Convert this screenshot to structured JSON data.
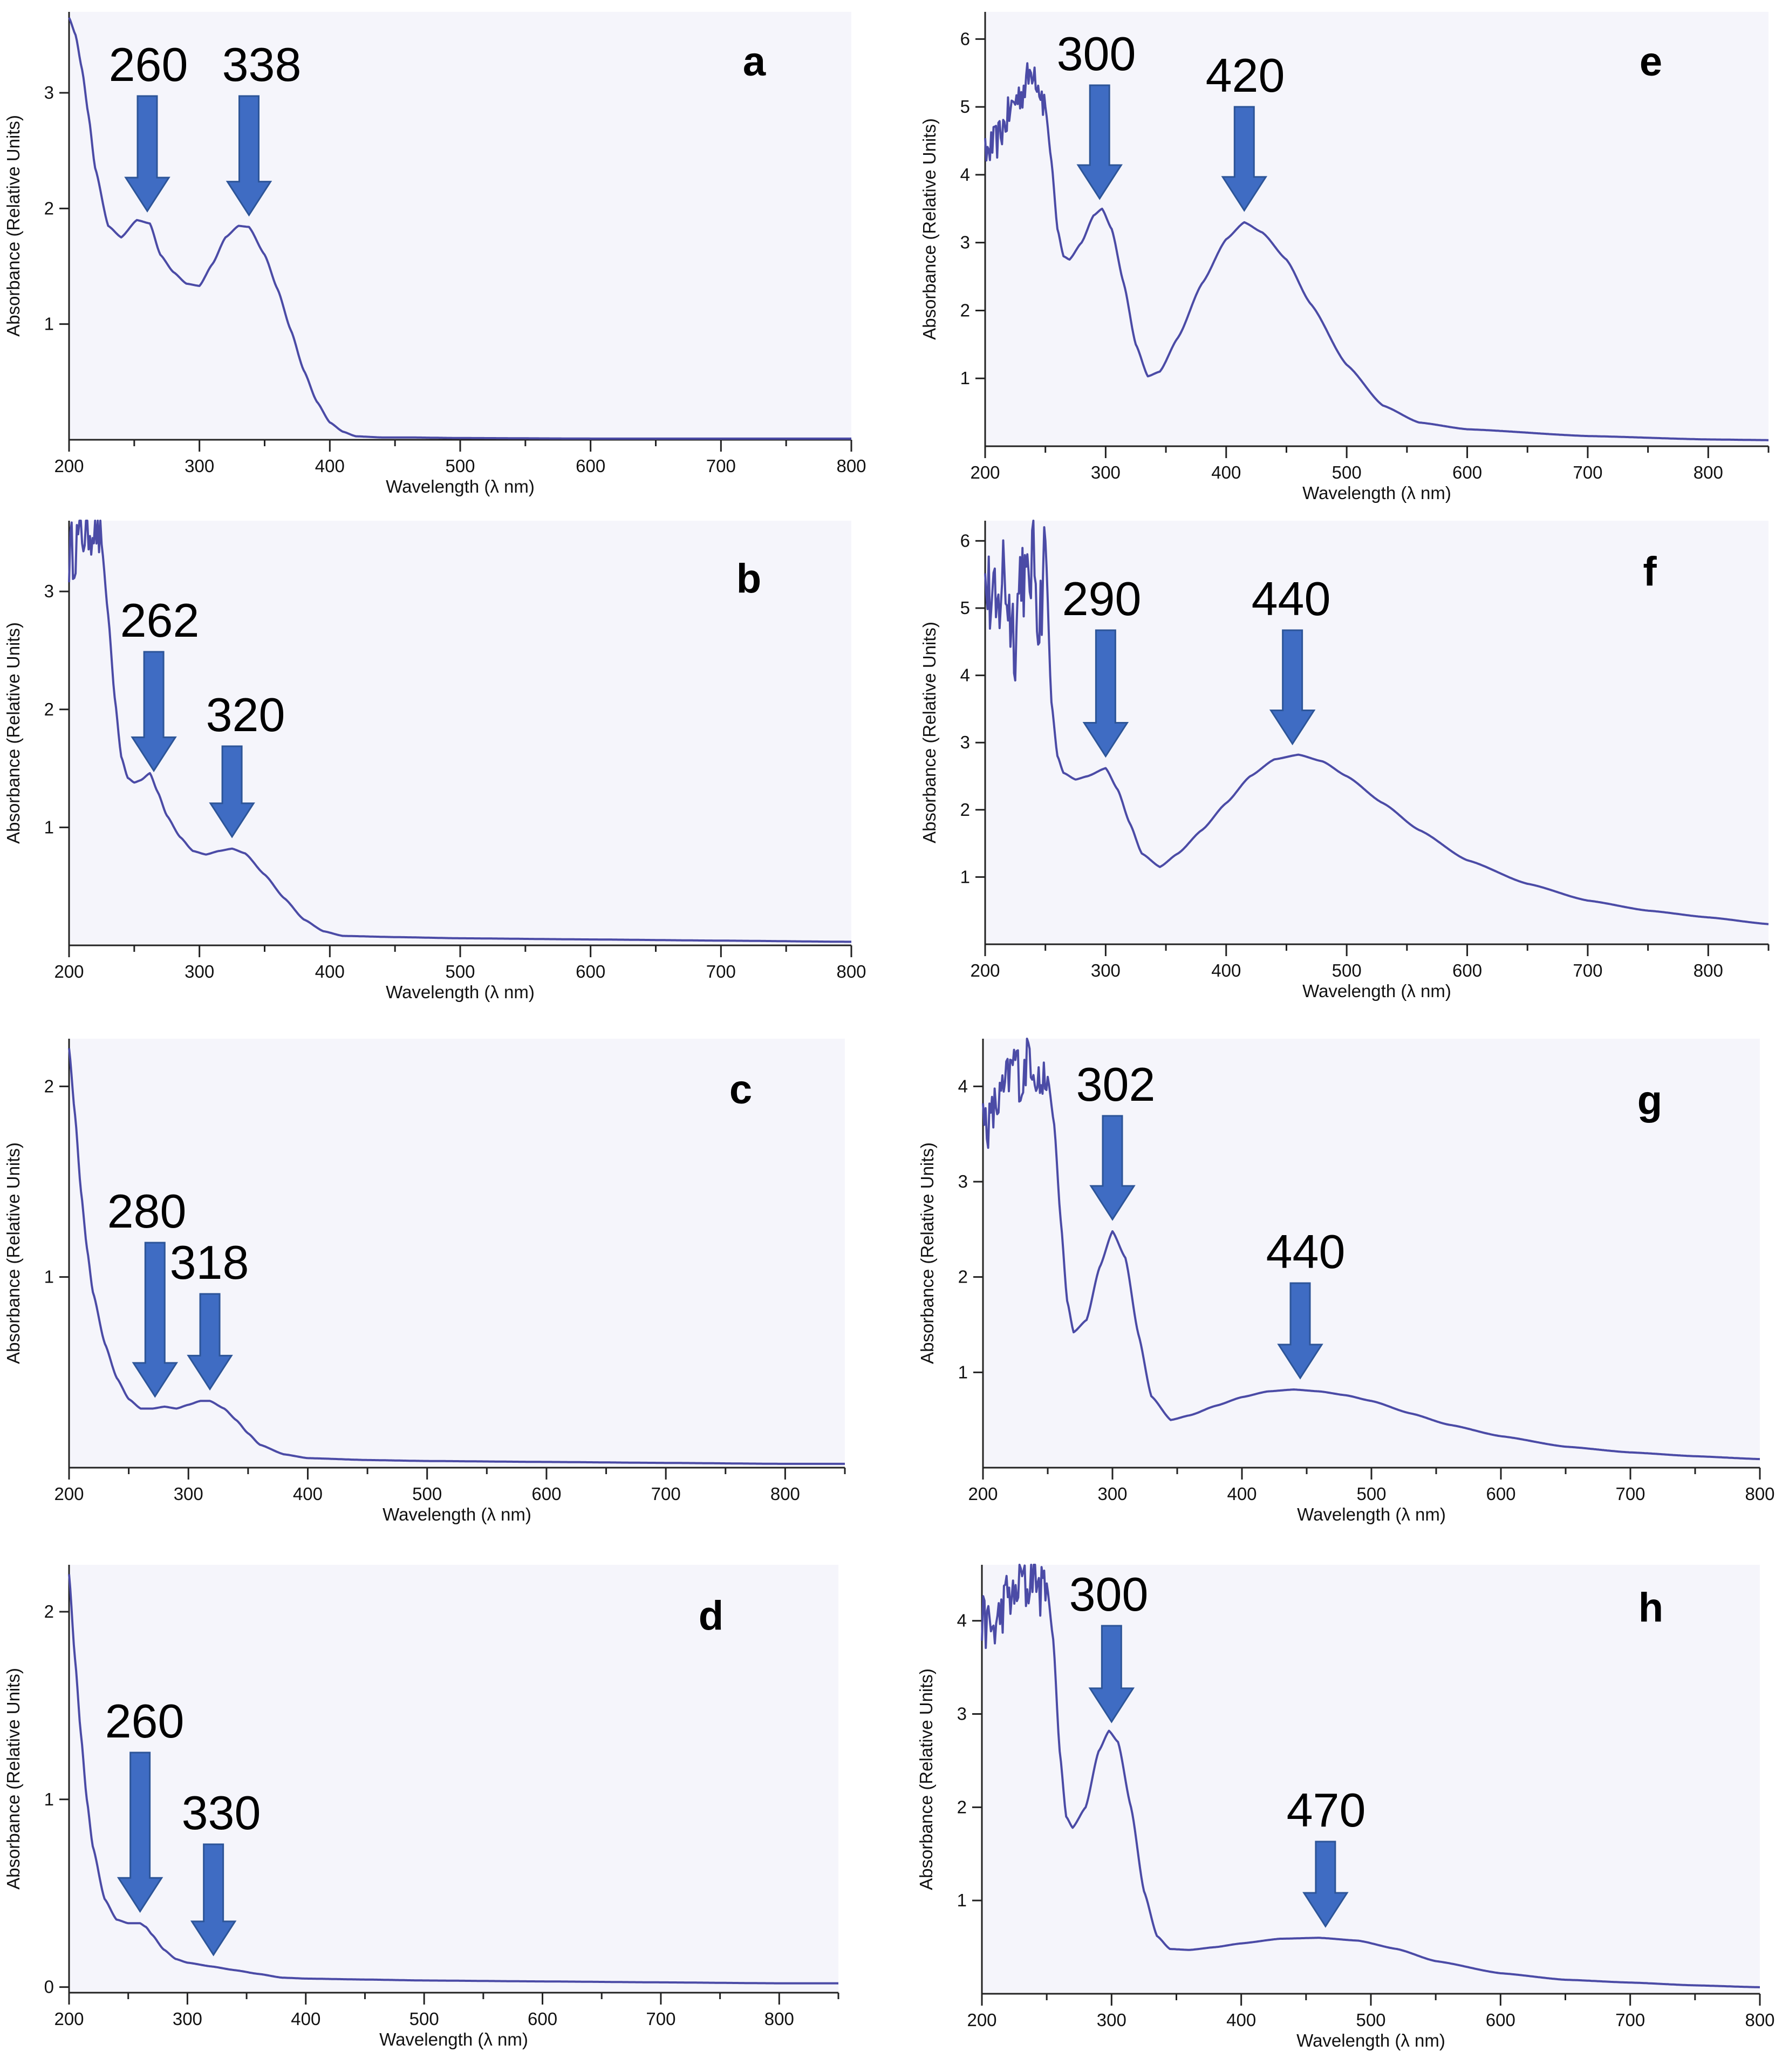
{
  "figure": {
    "colors": {
      "line": "#4b4ba6",
      "arrow_fill": "#3f6cc3",
      "arrow_stroke": "#2d5598",
      "panel_background": "#f5f5fb",
      "axis": "#222222"
    },
    "axis_labels": {
      "x": "Wavelength (λ nm)",
      "y": "Absorbance (Relative Units)"
    }
  },
  "chart_data": [
    {
      "panel": "a",
      "type": "line",
      "xlabel": "Wavelength (λ nm)",
      "ylabel": "Absorbance (Relative Units)",
      "xlim": [
        200,
        800
      ],
      "ylim": [
        0,
        3.7
      ],
      "xticks": [
        200,
        300,
        400,
        500,
        600,
        700,
        800
      ],
      "yticks": [
        1,
        2,
        3
      ],
      "noisy_until": 0,
      "x": [
        200,
        205,
        210,
        215,
        220,
        230,
        240,
        252,
        262,
        270,
        280,
        290,
        300,
        310,
        320,
        330,
        338,
        350,
        360,
        370,
        380,
        390,
        400,
        410,
        420,
        440,
        460,
        500,
        600,
        700,
        800
      ],
      "y": [
        3.65,
        3.5,
        3.2,
        2.8,
        2.35,
        1.85,
        1.75,
        1.9,
        1.87,
        1.6,
        1.45,
        1.35,
        1.33,
        1.52,
        1.75,
        1.85,
        1.84,
        1.6,
        1.3,
        0.95,
        0.6,
        0.33,
        0.15,
        0.07,
        0.03,
        0.02,
        0.02,
        0.015,
        0.01,
        0.01,
        0.01
      ],
      "peaks": [
        {
          "label": "260",
          "wavelength": 260
        },
        {
          "label": "338",
          "wavelength": 338
        }
      ]
    },
    {
      "panel": "b",
      "type": "line",
      "xlabel": "Wavelength (λ nm)",
      "ylabel": "Absorbance (Relative Units)",
      "xlim": [
        200,
        800
      ],
      "ylim": [
        0,
        3.6
      ],
      "xticks": [
        200,
        300,
        400,
        500,
        600,
        700,
        800
      ],
      "yticks": [
        1,
        2,
        3
      ],
      "noisy_until": 225,
      "x": [
        200,
        205,
        210,
        215,
        220,
        225,
        230,
        235,
        240,
        245,
        250,
        255,
        262,
        268,
        275,
        285,
        295,
        305,
        315,
        325,
        335,
        350,
        365,
        380,
        395,
        410,
        450,
        500,
        600,
        700,
        800
      ],
      "y": [
        3.3,
        3.4,
        3.5,
        3.55,
        3.6,
        3.4,
        2.8,
        2.1,
        1.6,
        1.42,
        1.38,
        1.4,
        1.46,
        1.3,
        1.1,
        0.92,
        0.8,
        0.77,
        0.8,
        0.82,
        0.78,
        0.6,
        0.4,
        0.22,
        0.12,
        0.08,
        0.07,
        0.06,
        0.05,
        0.04,
        0.03
      ],
      "peaks": [
        {
          "label": "262",
          "wavelength": 265
        },
        {
          "label": "320",
          "wavelength": 325
        }
      ]
    },
    {
      "panel": "c",
      "type": "line",
      "xlabel": "Wavelength (λ nm)",
      "ylabel": "Absorbance (Relative Units)",
      "xlim": [
        200,
        850
      ],
      "ylim": [
        0,
        2.25
      ],
      "xticks": [
        200,
        300,
        400,
        500,
        600,
        700,
        800
      ],
      "yticks": [
        1,
        2
      ],
      "noisy_until": 0,
      "x": [
        200,
        205,
        210,
        215,
        220,
        230,
        240,
        250,
        260,
        270,
        280,
        290,
        300,
        310,
        318,
        330,
        340,
        350,
        360,
        380,
        400,
        450,
        500,
        600,
        700,
        800,
        850
      ],
      "y": [
        2.2,
        1.85,
        1.45,
        1.15,
        0.92,
        0.65,
        0.47,
        0.36,
        0.31,
        0.31,
        0.32,
        0.31,
        0.33,
        0.35,
        0.35,
        0.31,
        0.25,
        0.18,
        0.12,
        0.07,
        0.05,
        0.04,
        0.035,
        0.03,
        0.025,
        0.02,
        0.02
      ],
      "peaks": [
        {
          "label": "280",
          "wavelength": 272
        },
        {
          "label": "318",
          "wavelength": 318
        }
      ]
    },
    {
      "panel": "d",
      "type": "line",
      "xlabel": "Wavelength (λ nm)",
      "ylabel": "Absorbance (Relative Units)",
      "xlim": [
        200,
        850
      ],
      "ylim": [
        -0.03,
        2.25
      ],
      "xticks": [
        200,
        300,
        400,
        500,
        600,
        700,
        800
      ],
      "yticks": [
        0,
        1,
        2
      ],
      "noisy_until": 0,
      "x": [
        200,
        205,
        210,
        215,
        220,
        230,
        240,
        250,
        260,
        265,
        270,
        280,
        290,
        300,
        320,
        340,
        360,
        380,
        400,
        450,
        500,
        600,
        700,
        800,
        850
      ],
      "y": [
        2.2,
        1.75,
        1.35,
        1.0,
        0.75,
        0.47,
        0.36,
        0.34,
        0.34,
        0.32,
        0.28,
        0.2,
        0.15,
        0.13,
        0.11,
        0.09,
        0.07,
        0.05,
        0.045,
        0.04,
        0.035,
        0.03,
        0.025,
        0.02,
        0.02
      ],
      "peaks": [
        {
          "label": "260",
          "wavelength": 260
        },
        {
          "label": "330",
          "wavelength": 322
        }
      ]
    },
    {
      "panel": "e",
      "type": "line",
      "xlabel": "Wavelength (λ nm)",
      "ylabel": "Absorbance (Relative Units)",
      "xlim": [
        200,
        850
      ],
      "ylim": [
        0,
        6.4
      ],
      "xticks": [
        200,
        300,
        400,
        500,
        600,
        700,
        800
      ],
      "yticks": [
        1,
        2,
        3,
        4,
        5,
        6
      ],
      "noisy_until": 250,
      "x": [
        200,
        205,
        210,
        215,
        220,
        225,
        230,
        235,
        240,
        245,
        250,
        255,
        260,
        265,
        270,
        280,
        290,
        297,
        305,
        315,
        325,
        335,
        345,
        360,
        380,
        400,
        415,
        430,
        450,
        470,
        500,
        530,
        560,
        600,
        700,
        800,
        850
      ],
      "y": [
        4.3,
        4.4,
        4.5,
        4.7,
        4.9,
        5.1,
        5.2,
        5.4,
        5.6,
        5.3,
        5.0,
        4.2,
        3.2,
        2.8,
        2.75,
        3.0,
        3.4,
        3.5,
        3.2,
        2.4,
        1.5,
        1.03,
        1.1,
        1.6,
        2.4,
        3.05,
        3.3,
        3.15,
        2.75,
        2.1,
        1.2,
        0.6,
        0.35,
        0.25,
        0.15,
        0.1,
        0.09
      ],
      "peaks": [
        {
          "label": "300",
          "wavelength": 295
        },
        {
          "label": "420",
          "wavelength": 415
        }
      ]
    },
    {
      "panel": "f",
      "type": "line",
      "xlabel": "Wavelength (λ nm)",
      "ylabel": "Absorbance (Relative Units)",
      "xlim": [
        200,
        850
      ],
      "ylim": [
        0,
        6.3
      ],
      "xticks": [
        200,
        300,
        400,
        500,
        600,
        700,
        800
      ],
      "yticks": [
        1,
        2,
        3,
        4,
        5,
        6
      ],
      "noisy_until": 250,
      "x": [
        200,
        205,
        210,
        215,
        220,
        225,
        230,
        235,
        240,
        245,
        250,
        255,
        260,
        265,
        275,
        285,
        300,
        310,
        320,
        330,
        345,
        360,
        380,
        400,
        420,
        440,
        460,
        480,
        500,
        530,
        560,
        600,
        650,
        700,
        750,
        800,
        850
      ],
      "y": [
        5.4,
        5.1,
        4.8,
        5.6,
        5.0,
        4.6,
        5.7,
        5.2,
        5.9,
        4.8,
        6.0,
        3.6,
        2.8,
        2.55,
        2.45,
        2.5,
        2.62,
        2.3,
        1.8,
        1.35,
        1.15,
        1.35,
        1.7,
        2.1,
        2.5,
        2.75,
        2.82,
        2.72,
        2.5,
        2.1,
        1.7,
        1.25,
        0.9,
        0.65,
        0.5,
        0.4,
        0.3
      ],
      "peaks": [
        {
          "label": "290",
          "wavelength": 300
        },
        {
          "label": "440",
          "wavelength": 455
        }
      ]
    },
    {
      "panel": "g",
      "type": "line",
      "xlabel": "Wavelength (λ nm)",
      "ylabel": "Absorbance (Relative Units)",
      "xlim": [
        200,
        800
      ],
      "ylim": [
        0,
        4.5
      ],
      "xticks": [
        200,
        300,
        400,
        500,
        600,
        700,
        800
      ],
      "yticks": [
        1,
        2,
        3,
        4
      ],
      "noisy_until": 250,
      "x": [
        200,
        205,
        210,
        215,
        220,
        225,
        230,
        235,
        240,
        245,
        250,
        255,
        260,
        265,
        270,
        280,
        290,
        300,
        310,
        320,
        330,
        345,
        360,
        380,
        400,
        420,
        440,
        460,
        480,
        500,
        530,
        560,
        600,
        650,
        700,
        750,
        800
      ],
      "y": [
        3.7,
        3.6,
        3.8,
        3.9,
        4.1,
        4.3,
        4.0,
        4.4,
        4.2,
        4.0,
        4.1,
        3.6,
        2.6,
        1.75,
        1.42,
        1.55,
        2.1,
        2.48,
        2.2,
        1.4,
        0.75,
        0.5,
        0.55,
        0.65,
        0.74,
        0.8,
        0.82,
        0.8,
        0.76,
        0.7,
        0.57,
        0.45,
        0.33,
        0.22,
        0.16,
        0.12,
        0.09
      ],
      "peaks": [
        {
          "label": "302",
          "wavelength": 300
        },
        {
          "label": "440",
          "wavelength": 445
        }
      ]
    },
    {
      "panel": "h",
      "type": "line",
      "xlabel": "Wavelength (λ nm)",
      "ylabel": "Absorbance (Relative Units)",
      "xlim": [
        200,
        800
      ],
      "ylim": [
        0,
        4.6
      ],
      "xticks": [
        200,
        300,
        400,
        500,
        600,
        700,
        800
      ],
      "yticks": [
        1,
        2,
        3,
        4
      ],
      "noisy_until": 250,
      "x": [
        200,
        205,
        210,
        215,
        220,
        225,
        230,
        235,
        240,
        245,
        250,
        255,
        260,
        265,
        270,
        280,
        290,
        298,
        305,
        315,
        325,
        335,
        345,
        360,
        380,
        400,
        430,
        460,
        490,
        520,
        550,
        600,
        650,
        700,
        750,
        800
      ],
      "y": [
        4.0,
        3.95,
        3.9,
        4.1,
        4.3,
        4.2,
        4.5,
        4.3,
        4.6,
        4.3,
        4.4,
        3.8,
        2.6,
        1.9,
        1.78,
        2.0,
        2.6,
        2.82,
        2.7,
        2.0,
        1.1,
        0.62,
        0.48,
        0.47,
        0.5,
        0.54,
        0.59,
        0.6,
        0.57,
        0.48,
        0.35,
        0.22,
        0.15,
        0.12,
        0.09,
        0.07
      ],
      "peaks": [
        {
          "label": "300",
          "wavelength": 300
        },
        {
          "label": "470",
          "wavelength": 465
        }
      ]
    }
  ]
}
